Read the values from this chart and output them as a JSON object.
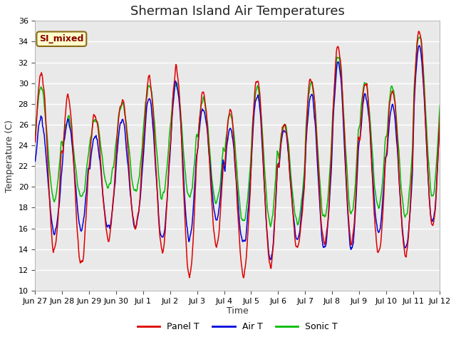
{
  "title": "Sherman Island Air Temperatures",
  "xlabel": "Time",
  "ylabel": "Temperature (C)",
  "ylim": [
    10,
    36
  ],
  "yticks": [
    10,
    12,
    14,
    16,
    18,
    20,
    22,
    24,
    26,
    28,
    30,
    32,
    34,
    36
  ],
  "legend_labels": [
    "Panel T",
    "Air T",
    "Sonic T"
  ],
  "legend_colors": [
    "#ff0000",
    "#0000ff",
    "#00cc00"
  ],
  "annotation_text": "SI_mixed",
  "annotation_bg": "#ffffcc",
  "annotation_border": "#8b6914",
  "annotation_text_color": "#8b0000",
  "tick_labels": [
    "Jun 27",
    "Jun 28",
    "Jun 29",
    "Jun 30",
    "Jul 1",
    "Jul 2",
    "Jul 3",
    "Jul 4",
    "Jul 5",
    "Jul 6",
    "Jul 7",
    "Jul 8",
    "Jul 9",
    "Jul 10",
    "Jul 11",
    "Jul 12"
  ],
  "title_fontsize": 13,
  "axis_fontsize": 9,
  "tick_fontsize": 8
}
